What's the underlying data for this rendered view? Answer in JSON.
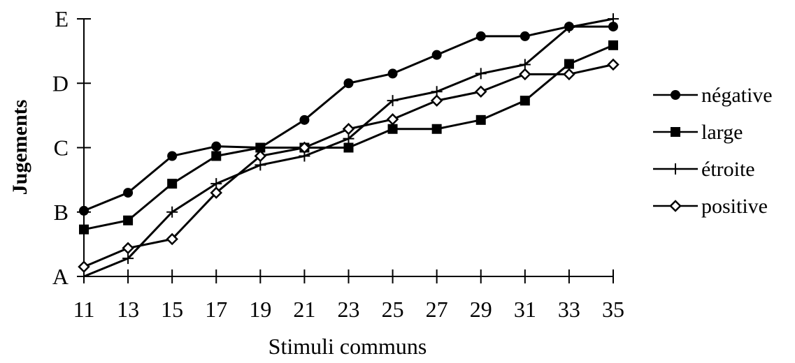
{
  "chart_data": {
    "type": "line",
    "xlabel": "Stimuli communs",
    "ylabel": "Jugements",
    "x": [
      11,
      13,
      15,
      17,
      19,
      21,
      23,
      25,
      27,
      29,
      31,
      33,
      35
    ],
    "xlim": [
      11,
      35
    ],
    "ylim": [
      0,
      4
    ],
    "y_ticks": [
      {
        "value": 0,
        "label": "A"
      },
      {
        "value": 1,
        "label": "B"
      },
      {
        "value": 2,
        "label": "C"
      },
      {
        "value": 3,
        "label": "D"
      },
      {
        "value": 4,
        "label": "E"
      }
    ],
    "grid": false,
    "legend_position": "right",
    "series": [
      {
        "name": "négative",
        "marker": "filled-circle",
        "values": [
          1.02,
          1.3,
          1.87,
          2.02,
          2.0,
          2.43,
          3.0,
          3.15,
          3.44,
          3.73,
          3.73,
          3.88,
          3.88
        ]
      },
      {
        "name": "large",
        "marker": "filled-square",
        "values": [
          0.73,
          0.87,
          1.44,
          1.87,
          2.0,
          2.0,
          2.0,
          2.29,
          2.29,
          2.43,
          2.73,
          3.3,
          3.59
        ]
      },
      {
        "name": "étroite",
        "marker": "plus",
        "values": [
          0.0,
          0.28,
          1.0,
          1.44,
          1.73,
          1.87,
          2.14,
          2.73,
          2.87,
          3.15,
          3.29,
          3.87,
          4.0
        ]
      },
      {
        "name": "positive",
        "marker": "open-diamond",
        "values": [
          0.15,
          0.44,
          0.58,
          1.3,
          1.87,
          2.0,
          2.29,
          2.44,
          2.73,
          2.87,
          3.14,
          3.14,
          3.29
        ]
      }
    ]
  }
}
